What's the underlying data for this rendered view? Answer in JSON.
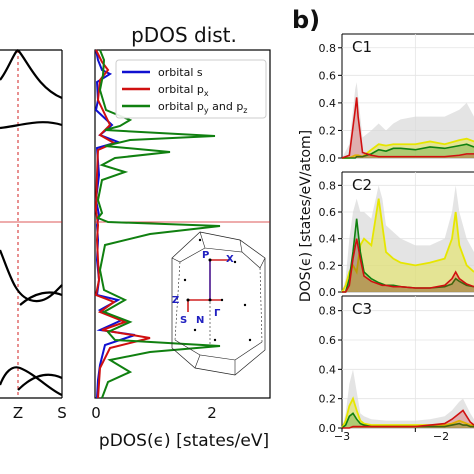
{
  "band_panel": {
    "kpoints": [
      "Z",
      "S"
    ]
  },
  "pdos_panel": {
    "title": "pDOS dist.",
    "xlabel": "pDOS(ϵ) [states/eV]",
    "xticks": [
      "0",
      "2"
    ],
    "legend": [
      "orbital s",
      "orbital p",
      "x",
      "orbital p",
      "y",
      " and p",
      "z"
    ]
  },
  "bz_inset": {
    "labels": [
      "P",
      "X",
      "Z",
      "S",
      "N",
      "Γ"
    ]
  },
  "panel_b": {
    "label": "b)",
    "ylabel": "DOS(ϵ) [states/eV/atom]",
    "subplots": [
      "C1",
      "C2",
      "C3"
    ],
    "yticks": [
      "0.8",
      "0.6",
      "0.4",
      "0.2",
      "0.0"
    ],
    "xticks": [
      "−3",
      "−2"
    ]
  },
  "colors": {
    "s": "#1010d0",
    "px": "#d01010",
    "pyz": "#108010",
    "yellow": "#e6e600",
    "fermi": "#d02020",
    "grey_fill": "#d8d8d8"
  },
  "chart_data": [
    {
      "type": "line",
      "title": "pDOS dist.",
      "xlabel": "pDOS(ϵ) [states/eV]",
      "xlim": [
        0,
        3
      ],
      "series": [
        {
          "name": "orbital s",
          "orientation": "horizontal-density"
        },
        {
          "name": "orbital p_x",
          "orientation": "horizontal-density"
        },
        {
          "name": "orbital p_y and p_z",
          "orientation": "horizontal-density"
        }
      ]
    },
    {
      "type": "area",
      "ylabel": "DOS(ϵ) [states/eV/atom]",
      "xlim": [
        -3,
        -1.2
      ],
      "ylim": [
        0,
        0.9
      ],
      "subplots": [
        {
          "name": "C1",
          "x": [
            -3.0,
            -2.9,
            -2.82,
            -2.8,
            -2.78,
            -2.72,
            -2.6,
            -2.5,
            -2.4,
            -2.3,
            -2.2,
            -2.0,
            -1.8,
            -1.6,
            -1.4,
            -1.3,
            -1.2
          ],
          "red": [
            0.0,
            0.02,
            0.35,
            0.44,
            0.3,
            0.04,
            0.02,
            0.01,
            0.01,
            0.01,
            0.01,
            0.01,
            0.01,
            0.01,
            0.02,
            0.03,
            0.03
          ],
          "yellow": [
            0.0,
            0.0,
            0.02,
            0.02,
            0.02,
            0.01,
            0.06,
            0.1,
            0.09,
            0.1,
            0.1,
            0.1,
            0.12,
            0.1,
            0.13,
            0.14,
            0.12
          ],
          "green": [
            0.0,
            0.0,
            0.0,
            0.01,
            0.01,
            0.01,
            0.03,
            0.06,
            0.05,
            0.07,
            0.07,
            0.06,
            0.08,
            0.07,
            0.09,
            0.1,
            0.08
          ],
          "grey": [
            0.0,
            0.1,
            0.5,
            0.55,
            0.45,
            0.15,
            0.2,
            0.25,
            0.2,
            0.25,
            0.28,
            0.3,
            0.3,
            0.3,
            0.35,
            0.4,
            0.3
          ]
        },
        {
          "name": "C2",
          "x": [
            -3.0,
            -2.95,
            -2.9,
            -2.85,
            -2.8,
            -2.75,
            -2.7,
            -2.6,
            -2.5,
            -2.45,
            -2.4,
            -2.3,
            -2.2,
            -2.0,
            -1.8,
            -1.6,
            -1.5,
            -1.45,
            -1.4,
            -1.3,
            -1.2
          ],
          "green": [
            0.0,
            0.0,
            0.1,
            0.3,
            0.55,
            0.3,
            0.15,
            0.1,
            0.07,
            0.06,
            0.05,
            0.05,
            0.04,
            0.03,
            0.03,
            0.04,
            0.06,
            0.1,
            0.08,
            0.05,
            0.04
          ],
          "red": [
            0.0,
            0.0,
            0.05,
            0.25,
            0.4,
            0.25,
            0.12,
            0.08,
            0.06,
            0.05,
            0.05,
            0.04,
            0.04,
            0.03,
            0.03,
            0.05,
            0.1,
            0.15,
            0.1,
            0.06,
            0.04
          ],
          "yellow": [
            0.0,
            0.05,
            0.15,
            0.2,
            0.15,
            0.35,
            0.4,
            0.35,
            0.7,
            0.5,
            0.3,
            0.25,
            0.22,
            0.2,
            0.22,
            0.25,
            0.4,
            0.6,
            0.35,
            0.2,
            0.15
          ],
          "grey": [
            0.0,
            0.1,
            0.4,
            0.6,
            0.7,
            0.6,
            0.6,
            0.55,
            0.8,
            0.7,
            0.5,
            0.45,
            0.4,
            0.35,
            0.35,
            0.4,
            0.6,
            0.8,
            0.6,
            0.4,
            0.3
          ]
        },
        {
          "name": "C3",
          "x": [
            -3.0,
            -2.95,
            -2.9,
            -2.85,
            -2.8,
            -2.75,
            -2.7,
            -2.6,
            -2.4,
            -2.2,
            -2.0,
            -1.8,
            -1.6,
            -1.5,
            -1.4,
            -1.35,
            -1.3,
            -1.25,
            -1.2
          ],
          "yellow": [
            0.0,
            0.05,
            0.15,
            0.2,
            0.12,
            0.05,
            0.03,
            0.02,
            0.02,
            0.02,
            0.02,
            0.02,
            0.02,
            0.03,
            0.05,
            0.04,
            0.03,
            0.02,
            0.02
          ],
          "green": [
            0.0,
            0.02,
            0.08,
            0.1,
            0.06,
            0.03,
            0.02,
            0.01,
            0.01,
            0.01,
            0.01,
            0.01,
            0.01,
            0.02,
            0.03,
            0.02,
            0.02,
            0.01,
            0.01
          ],
          "red": [
            0.0,
            0.0,
            0.0,
            0.01,
            0.01,
            0.01,
            0.01,
            0.01,
            0.01,
            0.01,
            0.01,
            0.02,
            0.03,
            0.06,
            0.1,
            0.12,
            0.08,
            0.04,
            0.02
          ],
          "grey": [
            0.0,
            0.1,
            0.3,
            0.4,
            0.25,
            0.1,
            0.08,
            0.06,
            0.05,
            0.05,
            0.05,
            0.06,
            0.08,
            0.12,
            0.18,
            0.2,
            0.15,
            0.1,
            0.06
          ]
        }
      ]
    }
  ]
}
